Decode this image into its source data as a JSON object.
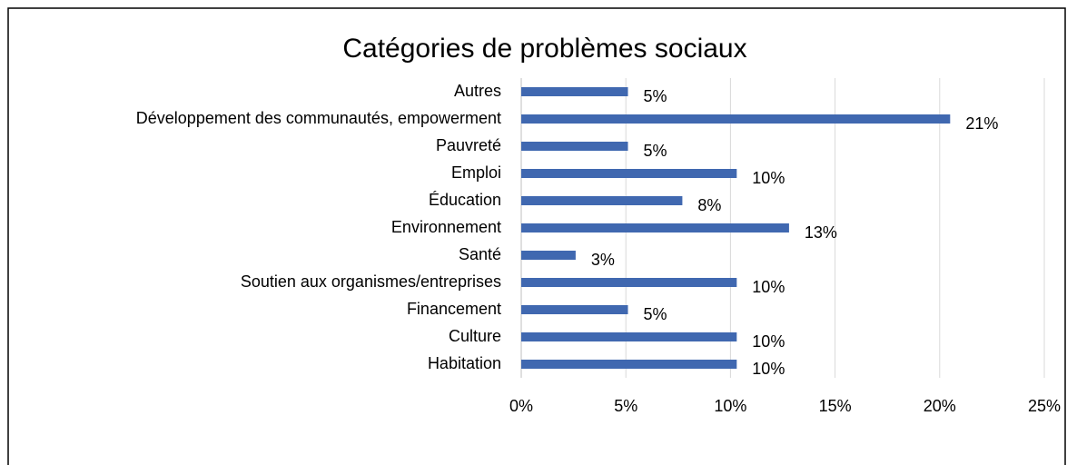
{
  "chart_data": {
    "type": "bar",
    "orientation": "horizontal",
    "title": "Catégories de problèmes sociaux",
    "categories": [
      "Autres",
      "Développement des communautés, empowerment",
      "Pauvreté",
      "Emploi",
      "Éducation",
      "Environnement",
      "Santé",
      "Soutien aux organismes/entreprises",
      "Financement",
      "Culture",
      "Habitation"
    ],
    "values": [
      5.1,
      20.5,
      5.1,
      10.3,
      7.7,
      12.8,
      2.6,
      10.3,
      5.1,
      10.3,
      10.3
    ],
    "value_labels": [
      "5%",
      "21%",
      "5%",
      "10%",
      "8%",
      "13%",
      "3%",
      "10%",
      "5%",
      "10%",
      "10%"
    ],
    "color": "#4068b0",
    "xlim": [
      0,
      25
    ],
    "xticks": [
      {
        "value": 0,
        "label": "0%"
      },
      {
        "value": 5,
        "label": "5%"
      },
      {
        "value": 10,
        "label": "10%"
      },
      {
        "value": 15,
        "label": "15%"
      },
      {
        "value": 20,
        "label": "20%"
      },
      {
        "value": 25,
        "label": "25%"
      }
    ],
    "grid": true
  }
}
